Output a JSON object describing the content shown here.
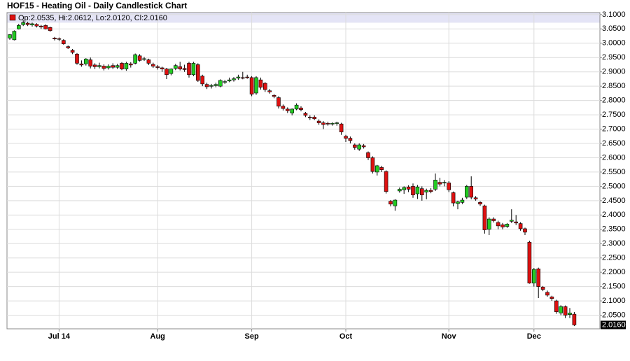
{
  "chart_data": {
    "type": "candlestick",
    "title": "HOF15 - Heating Oil - Daily Candlestick Chart",
    "info": "Op:2.0535, Hi:2.0612, Lo:2.0120, Cl:2.0160",
    "last_price_label": "2.0160",
    "up_color": "#22cc22",
    "down_color": "#dd1111",
    "grid": true,
    "ylim": [
      2.0,
      3.107
    ],
    "yticks": [
      {
        "value": 2.05,
        "label": "2.0500"
      },
      {
        "value": 2.1,
        "label": "2.1000"
      },
      {
        "value": 2.15,
        "label": "2.1500"
      },
      {
        "value": 2.2,
        "label": "2.2000"
      },
      {
        "value": 2.25,
        "label": "2.2500"
      },
      {
        "value": 2.3,
        "label": "2.3000"
      },
      {
        "value": 2.35,
        "label": "2.3500"
      },
      {
        "value": 2.4,
        "label": "2.4000"
      },
      {
        "value": 2.45,
        "label": "2.4500"
      },
      {
        "value": 2.5,
        "label": "2.5000"
      },
      {
        "value": 2.55,
        "label": "2.5500"
      },
      {
        "value": 2.6,
        "label": "2.6000"
      },
      {
        "value": 2.65,
        "label": "2.6500"
      },
      {
        "value": 2.7,
        "label": "2.7000"
      },
      {
        "value": 2.75,
        "label": "2.7500"
      },
      {
        "value": 2.8,
        "label": "2.8000"
      },
      {
        "value": 2.85,
        "label": "2.8500"
      },
      {
        "value": 2.9,
        "label": "2.9000"
      },
      {
        "value": 2.95,
        "label": "2.9500"
      },
      {
        "value": 3.0,
        "label": "3.0000"
      },
      {
        "value": 3.05,
        "label": "3.0500"
      },
      {
        "value": 3.1,
        "label": "3.1000"
      }
    ],
    "categories": [
      null,
      null,
      null,
      null,
      null,
      null,
      null,
      null,
      null,
      null,
      null,
      "Jul 14",
      null,
      null,
      null,
      null,
      null,
      null,
      null,
      null,
      null,
      null,
      null,
      null,
      null,
      null,
      null,
      null,
      null,
      null,
      null,
      null,
      null,
      "Aug",
      null,
      null,
      null,
      null,
      null,
      null,
      null,
      null,
      null,
      null,
      null,
      null,
      null,
      null,
      null,
      null,
      null,
      null,
      null,
      null,
      "Sep",
      null,
      null,
      null,
      null,
      null,
      null,
      null,
      null,
      null,
      null,
      null,
      null,
      null,
      null,
      null,
      null,
      null,
      null,
      null,
      null,
      "Oct",
      null,
      null,
      null,
      null,
      null,
      null,
      null,
      null,
      null,
      null,
      null,
      null,
      null,
      null,
      null,
      null,
      null,
      null,
      null,
      null,
      null,
      null,
      "Nov",
      null,
      null,
      null,
      null,
      null,
      null,
      null,
      null,
      null,
      null,
      null,
      null,
      null,
      null,
      null,
      null,
      null,
      null,
      "Dec",
      null,
      null,
      null,
      null,
      null,
      null,
      null,
      null,
      null
    ],
    "open": [
      3.018,
      3.012,
      3.05,
      3.065,
      3.07,
      3.064,
      3.066,
      3.06,
      3.062,
      3.055,
      3.018,
      3.016,
      3.01,
      2.988,
      2.975,
      2.962,
      2.928,
      2.928,
      2.942,
      2.924,
      2.918,
      2.92,
      2.914,
      2.922,
      2.916,
      2.93,
      2.91,
      2.928,
      2.93,
      2.956,
      2.944,
      2.942,
      2.926,
      2.918,
      2.914,
      2.91,
      2.894,
      2.912,
      2.918,
      2.912,
      2.93,
      2.89,
      2.925,
      2.885,
      2.856,
      2.85,
      2.852,
      2.85,
      2.864,
      2.868,
      2.872,
      2.878,
      2.88,
      2.882,
      2.88,
      2.826,
      2.872,
      2.86,
      2.834,
      2.818,
      2.81,
      2.78,
      2.77,
      2.756,
      2.77,
      2.774,
      2.755,
      2.742,
      2.742,
      2.728,
      2.722,
      2.72,
      2.718,
      2.72,
      2.718,
      2.675,
      2.668,
      2.645,
      2.63,
      2.642,
      2.618,
      2.6,
      2.55,
      2.566,
      2.552,
      2.448,
      2.432,
      2.484,
      2.488,
      2.498,
      2.5,
      2.474,
      2.492,
      2.48,
      2.486,
      2.49,
      2.514,
      2.512,
      2.512,
      2.478,
      2.44,
      2.444,
      2.462,
      2.5,
      2.46,
      2.444,
      2.432,
      2.35,
      2.386,
      2.374,
      2.366,
      2.36,
      2.378,
      2.376,
      2.37,
      2.352,
      2.305,
      2.162,
      2.212,
      2.148,
      2.13,
      2.114,
      2.1,
      2.058,
      2.08,
      2.052,
      2.0535
    ],
    "high": [
      3.032,
      3.045,
      3.068,
      3.08,
      3.075,
      3.072,
      3.07,
      3.064,
      3.066,
      3.058,
      3.022,
      3.02,
      3.014,
      2.992,
      2.98,
      2.966,
      2.94,
      2.948,
      2.95,
      2.93,
      2.932,
      2.926,
      2.926,
      2.93,
      2.928,
      2.934,
      2.935,
      2.934,
      2.964,
      2.962,
      2.952,
      2.946,
      2.932,
      2.924,
      2.918,
      2.914,
      2.912,
      2.928,
      2.935,
      2.925,
      2.935,
      2.935,
      2.93,
      2.89,
      2.862,
      2.858,
      2.862,
      2.874,
      2.872,
      2.88,
      2.882,
      2.89,
      2.9,
      2.89,
      2.885,
      2.885,
      2.88,
      2.864,
      2.84,
      2.822,
      2.815,
      2.786,
      2.776,
      2.772,
      2.79,
      2.78,
      2.76,
      2.748,
      2.748,
      2.734,
      2.728,
      2.726,
      2.724,
      2.726,
      2.722,
      2.68,
      2.674,
      2.65,
      2.65,
      2.648,
      2.622,
      2.605,
      2.575,
      2.572,
      2.556,
      2.452,
      2.455,
      2.496,
      2.5,
      2.504,
      2.51,
      2.505,
      2.5,
      2.492,
      2.494,
      2.545,
      2.53,
      2.522,
      2.518,
      2.482,
      2.45,
      2.46,
      2.505,
      2.535,
      2.466,
      2.448,
      2.436,
      2.392,
      2.392,
      2.38,
      2.372,
      2.372,
      2.42,
      2.4,
      2.375,
      2.356,
      2.31,
      2.215,
      2.216,
      2.152,
      2.136,
      2.118,
      2.104,
      2.085,
      2.084,
      2.075,
      2.0612
    ],
    "low": [
      3.012,
      3.01,
      3.048,
      3.06,
      3.06,
      3.058,
      3.055,
      3.05,
      3.048,
      3.04,
      3.01,
      3.008,
      2.995,
      2.98,
      2.962,
      2.925,
      2.918,
      2.922,
      2.912,
      2.91,
      2.912,
      2.905,
      2.908,
      2.91,
      2.91,
      2.906,
      2.904,
      2.915,
      2.926,
      2.936,
      2.938,
      2.924,
      2.914,
      2.908,
      2.9,
      2.875,
      2.888,
      2.906,
      2.905,
      2.9,
      2.88,
      2.885,
      2.865,
      2.85,
      2.84,
      2.842,
      2.846,
      2.846,
      2.858,
      2.864,
      2.866,
      2.872,
      2.874,
      2.876,
      2.815,
      2.82,
      2.838,
      2.83,
      2.824,
      2.808,
      2.772,
      2.765,
      2.756,
      2.748,
      2.766,
      2.762,
      2.742,
      2.732,
      2.732,
      2.715,
      2.7,
      2.712,
      2.712,
      2.712,
      2.68,
      2.655,
      2.65,
      2.628,
      2.624,
      2.632,
      2.592,
      2.545,
      2.538,
      2.55,
      2.475,
      2.43,
      2.415,
      2.478,
      2.474,
      2.48,
      2.46,
      2.456,
      2.45,
      2.455,
      2.476,
      2.484,
      2.5,
      2.5,
      2.48,
      2.43,
      2.42,
      2.438,
      2.456,
      2.455,
      2.45,
      2.432,
      2.335,
      2.33,
      2.374,
      2.35,
      2.35,
      2.355,
      2.372,
      2.365,
      2.345,
      2.33,
      2.16,
      2.15,
      2.11,
      2.134,
      2.115,
      2.1,
      2.055,
      2.05,
      2.04,
      2.04,
      2.012
    ],
    "close": [
      3.03,
      3.042,
      3.062,
      3.072,
      3.065,
      3.068,
      3.06,
      3.057,
      3.05,
      3.044,
      3.015,
      3.014,
      2.998,
      2.984,
      2.968,
      2.93,
      2.924,
      2.945,
      2.92,
      2.918,
      2.922,
      2.912,
      2.92,
      2.916,
      2.922,
      2.91,
      2.93,
      2.924,
      2.96,
      2.94,
      2.946,
      2.93,
      2.92,
      2.915,
      2.91,
      2.89,
      2.91,
      2.922,
      2.91,
      2.908,
      2.89,
      2.93,
      2.87,
      2.858,
      2.848,
      2.852,
      2.856,
      2.87,
      2.866,
      2.872,
      2.876,
      2.882,
      2.878,
      2.88,
      2.822,
      2.88,
      2.846,
      2.838,
      2.83,
      2.814,
      2.78,
      2.772,
      2.764,
      2.77,
      2.784,
      2.768,
      2.748,
      2.74,
      2.736,
      2.722,
      2.716,
      2.718,
      2.72,
      2.722,
      2.69,
      2.668,
      2.66,
      2.636,
      2.645,
      2.638,
      2.6,
      2.552,
      2.572,
      2.558,
      2.482,
      2.438,
      2.452,
      2.49,
      2.496,
      2.49,
      2.47,
      2.498,
      2.47,
      2.486,
      2.482,
      2.522,
      2.508,
      2.514,
      2.488,
      2.442,
      2.446,
      2.452,
      2.5,
      2.462,
      2.456,
      2.438,
      2.348,
      2.386,
      2.38,
      2.362,
      2.358,
      2.368,
      2.382,
      2.372,
      2.352,
      2.34,
      2.162,
      2.21,
      2.15,
      2.14,
      2.12,
      2.108,
      2.062,
      2.08,
      2.05,
      2.058,
      2.016
    ]
  }
}
